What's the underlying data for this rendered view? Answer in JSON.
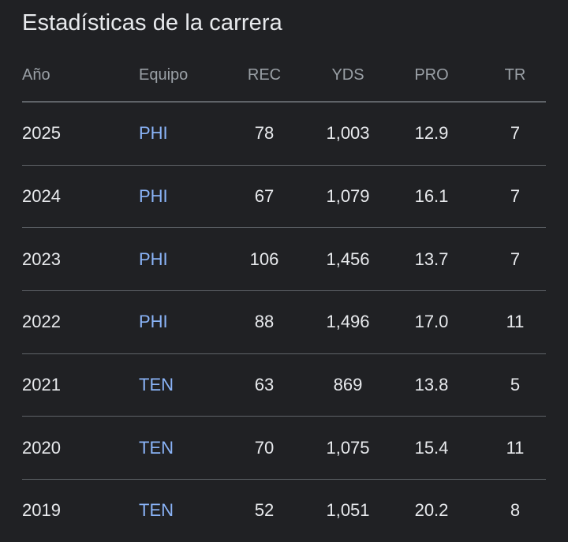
{
  "title": "Estadísticas de la carrera",
  "headers": {
    "year": "Año",
    "team": "Equipo",
    "rec": "REC",
    "yds": "YDS",
    "pro": "PRO",
    "tr": "TR"
  },
  "rows": [
    {
      "year": "2025",
      "team": "PHI",
      "rec": "78",
      "yds": "1,003",
      "pro": "12.9",
      "tr": "7"
    },
    {
      "year": "2024",
      "team": "PHI",
      "rec": "67",
      "yds": "1,079",
      "pro": "16.1",
      "tr": "7"
    },
    {
      "year": "2023",
      "team": "PHI",
      "rec": "106",
      "yds": "1,456",
      "pro": "13.7",
      "tr": "7"
    },
    {
      "year": "2022",
      "team": "PHI",
      "rec": "88",
      "yds": "1,496",
      "pro": "17.0",
      "tr": "11"
    },
    {
      "year": "2021",
      "team": "TEN",
      "rec": "63",
      "yds": "869",
      "pro": "13.8",
      "tr": "5"
    },
    {
      "year": "2020",
      "team": "TEN",
      "rec": "70",
      "yds": "1,075",
      "pro": "15.4",
      "tr": "11"
    },
    {
      "year": "2019",
      "team": "TEN",
      "rec": "52",
      "yds": "1,051",
      "pro": "20.2",
      "tr": "8"
    }
  ],
  "colors": {
    "background": "#202124",
    "text": "#e8eaed",
    "muted": "#9aa0a6",
    "link": "#8ab4f8",
    "divider": "#5f6368"
  }
}
